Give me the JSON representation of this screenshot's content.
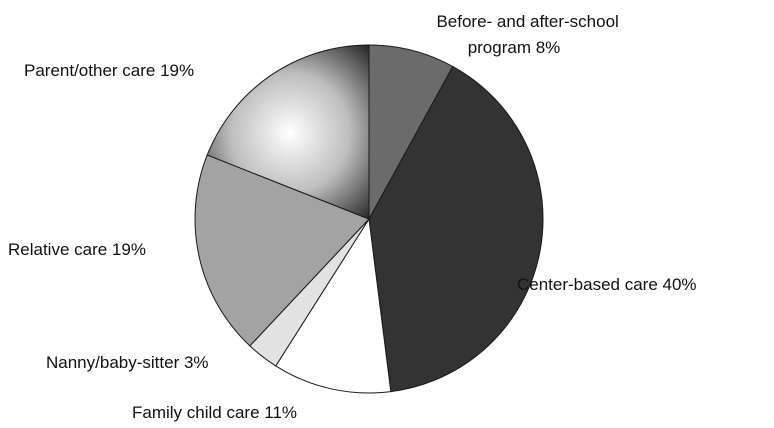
{
  "chart_data": {
    "type": "pie",
    "title": "",
    "slices": [
      {
        "label": "Before- and after-school program",
        "value": 8,
        "display": [
          "Before- and after-school",
          "program 8%"
        ],
        "color": "#6b6b6b"
      },
      {
        "label": "Center-based care",
        "value": 40,
        "display": [
          "Center-based care 40%"
        ],
        "color": "#333333"
      },
      {
        "label": "Family child care",
        "value": 11,
        "display": [
          "Family child care 11%"
        ],
        "color": "#ffffff"
      },
      {
        "label": "Nanny/baby-sitter",
        "value": 3,
        "display": [
          "Nanny/baby-sitter 3%"
        ],
        "color": "#e2e2e2"
      },
      {
        "label": "Relative care",
        "value": 19,
        "display": [
          "Relative care 19%"
        ],
        "color": "#a3a3a3"
      },
      {
        "label": "Parent/other care",
        "value": 19,
        "display": [
          "Parent/other care 19%"
        ],
        "color": "radial-gray"
      }
    ],
    "start": "12 o'clock",
    "direction": "clockwise",
    "legend": "none"
  }
}
